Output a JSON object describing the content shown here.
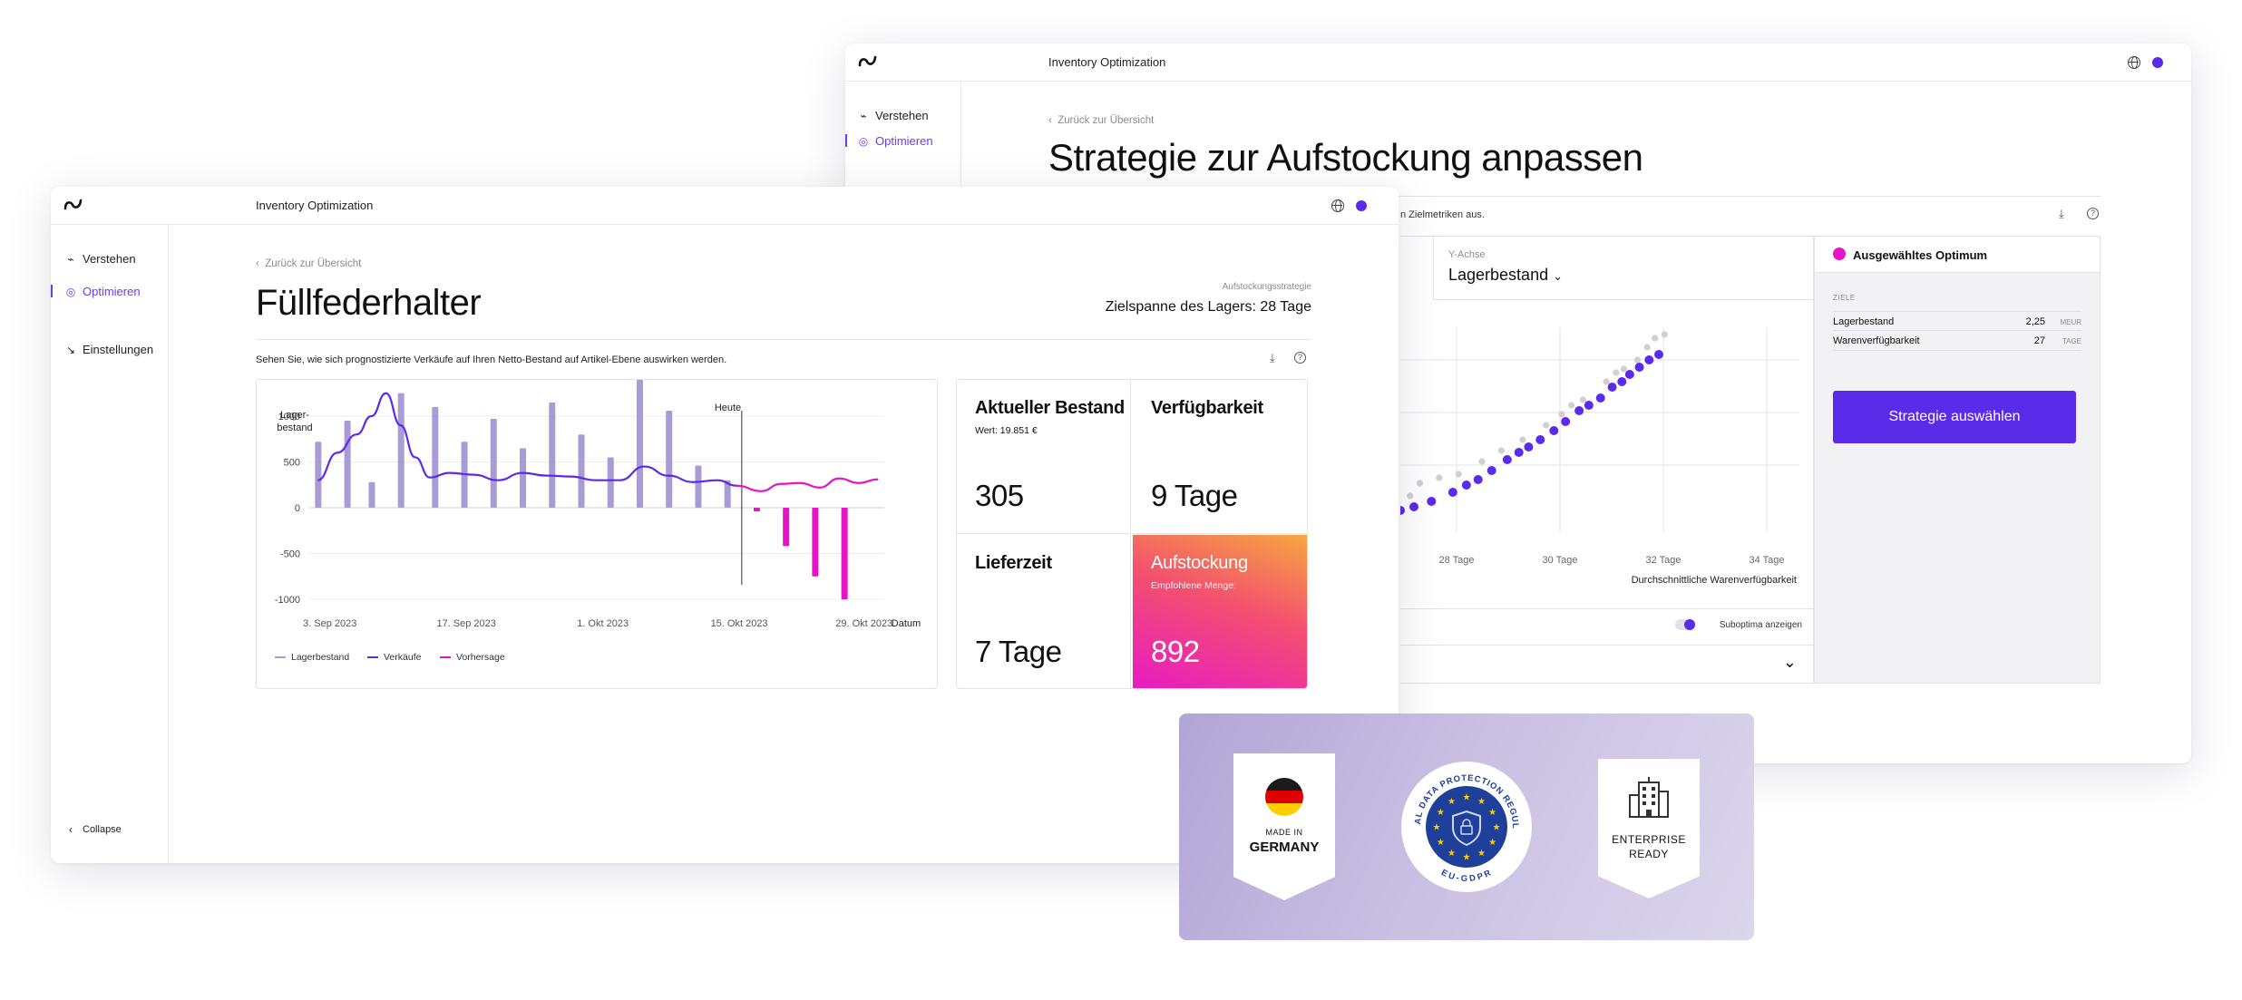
{
  "back_window": {
    "app_title": "Inventory Optimization",
    "nav": [
      {
        "label": "Verstehen",
        "icon": "pulse-icon"
      },
      {
        "label": "Optimieren",
        "icon": "target-icon",
        "active": true
      }
    ],
    "back_link": "Zurück zur Übersicht",
    "page_title": "Strategie zur Aufstockung anpassen",
    "instruction_fragment": "n Zielmetriken aus.",
    "y_axis_label": "Y-Achse",
    "y_axis_value": "Lagerbestand",
    "x_ticks": [
      "28 Tage",
      "30 Tage",
      "32 Tage",
      "34 Tage"
    ],
    "x_axis_title": "Durchschnittliche Warenverfügbarkeit",
    "toggle_label": "Suboptima anzeigen",
    "panel": {
      "title": "Ausgewähltes Optimum",
      "section": "ZIELE",
      "metrics": [
        {
          "label": "Lagerbestand",
          "value": "2,25",
          "unit": "MEUR"
        },
        {
          "label": "Warenverfügbarkeit",
          "value": "27",
          "unit": "TAGE"
        }
      ],
      "button": "Strategie auswählen"
    },
    "scatter_selected": [
      [
        0.0,
        0.02
      ],
      [
        0.07,
        0.04
      ],
      [
        0.16,
        0.07
      ],
      [
        0.27,
        0.12
      ],
      [
        0.34,
        0.16
      ],
      [
        0.4,
        0.19
      ],
      [
        0.47,
        0.24
      ],
      [
        0.55,
        0.3
      ],
      [
        0.61,
        0.34
      ],
      [
        0.66,
        0.37
      ],
      [
        0.72,
        0.41
      ],
      [
        0.79,
        0.46
      ],
      [
        0.85,
        0.51
      ],
      [
        0.92,
        0.57
      ],
      [
        0.97,
        0.6
      ],
      [
        1.03,
        0.64
      ],
      [
        1.09,
        0.7
      ],
      [
        1.14,
        0.73
      ],
      [
        1.18,
        0.77
      ],
      [
        1.23,
        0.81
      ],
      [
        1.28,
        0.85
      ],
      [
        1.33,
        0.88
      ]
    ],
    "scatter_sub": [
      [
        0.05,
        0.08
      ],
      [
        0.1,
        0.15
      ],
      [
        0.2,
        0.18
      ],
      [
        0.3,
        0.2
      ],
      [
        0.42,
        0.27
      ],
      [
        0.52,
        0.33
      ],
      [
        0.63,
        0.39
      ],
      [
        0.75,
        0.47
      ],
      [
        0.83,
        0.53
      ],
      [
        0.94,
        0.61
      ],
      [
        1.06,
        0.71
      ],
      [
        1.15,
        0.78
      ],
      [
        1.22,
        0.83
      ],
      [
        1.27,
        0.9
      ],
      [
        1.31,
        0.95
      ],
      [
        1.36,
        0.97
      ],
      [
        0.88,
        0.58
      ],
      [
        1.11,
        0.76
      ]
    ]
  },
  "front_window": {
    "app_title": "Inventory Optimization",
    "nav": [
      {
        "label": "Verstehen",
        "icon": "pulse-icon"
      },
      {
        "label": "Optimieren",
        "icon": "target-icon",
        "active": true
      },
      {
        "label": "Einstellungen",
        "icon": "settings-icon"
      }
    ],
    "collapse_label": "Collapse",
    "back_link": "Zurück zur Übersicht",
    "page_title": "Füllfederhalter",
    "strategy_caption": "Aufstockungsstrategie",
    "strategy_value": "Zielspanne des Lagers: 28 Tage",
    "chart_caption": "Sehen Sie, wie sich prognostizierte Verkäufe auf Ihren Netto-Bestand auf Artikel-Ebene auswirken werden.",
    "kpis": [
      {
        "title": "Aktueller Bestand",
        "subtitle": "Wert: 19.851 €",
        "value": "305"
      },
      {
        "title": "Verfügbarkeit",
        "subtitle": "",
        "value": "9 Tage"
      },
      {
        "title": "Lieferzeit",
        "subtitle": "",
        "value": "7 Tage"
      },
      {
        "title": "Aufstockung",
        "subtitle": "Empfohlene Menge:",
        "value": "892"
      }
    ]
  },
  "badges": [
    {
      "label_top": "MADE IN",
      "label_bottom": "GERMANY",
      "icon": "germany-flag-icon"
    },
    {
      "label_ring_top": "GENERAL DATA PROTECTION REGULATION",
      "label_ring_bottom": "EU-GDPR",
      "icon": "eu-gdpr-seal-icon"
    },
    {
      "label_top": "ENTERPRISE",
      "label_bottom": "READY",
      "icon": "building-icon"
    }
  ],
  "chart_data": {
    "type": "bar",
    "ylabel": "Lager-\nbestand",
    "xlabel": "Datum",
    "yticks": [
      1000,
      500,
      0,
      -500,
      -1000
    ],
    "ylim": [
      -1000,
      1000
    ],
    "xticks": [
      "3. Sep 2023",
      "17. Sep 2023",
      "1. Okt 2023",
      "15. Okt 2023",
      "29. Okt 2023"
    ],
    "annotation": "Heute",
    "x_index": [
      0,
      1,
      2,
      3,
      4,
      5,
      6,
      7,
      8,
      9,
      10,
      11,
      12,
      13,
      14,
      15,
      16,
      17,
      18,
      19,
      20,
      21,
      22,
      23,
      24,
      25,
      26,
      27,
      28,
      29,
      30,
      31,
      32,
      33,
      34,
      35,
      36,
      37,
      38,
      39,
      40,
      41,
      42,
      43,
      44,
      45,
      46,
      47,
      48,
      49,
      50,
      51,
      52,
      53,
      54,
      55,
      56,
      57,
      58,
      59,
      60,
      61,
      62,
      63,
      64,
      65,
      66,
      67,
      68,
      69,
      70,
      71,
      72,
      73,
      74,
      75,
      76,
      77,
      78,
      79,
      80,
      81,
      82,
      83,
      84,
      85,
      86,
      87,
      88,
      89,
      90,
      91,
      92,
      93,
      94,
      95,
      96
    ],
    "series": [
      {
        "name": "Lagerbestand",
        "kind": "bar",
        "color": "#a99bd3",
        "values": [
          {
            "i": 1,
            "v": 720
          },
          {
            "i": 7,
            "v": 950
          },
          {
            "i": 12,
            "v": 280
          },
          {
            "i": 18,
            "v": 1250
          },
          {
            "i": 25,
            "v": 1100
          },
          {
            "i": 31,
            "v": 720
          },
          {
            "i": 37,
            "v": 970
          },
          {
            "i": 43,
            "v": 650
          },
          {
            "i": 49,
            "v": 1150
          },
          {
            "i": 55,
            "v": 800
          },
          {
            "i": 61,
            "v": 550
          },
          {
            "i": 67,
            "v": 1520
          },
          {
            "i": 73,
            "v": 1060
          },
          {
            "i": 79,
            "v": 460
          },
          {
            "i": 85,
            "v": 300
          }
        ]
      },
      {
        "name": "Vorhersage",
        "kind": "bar",
        "color": "#e514c8",
        "values": [
          {
            "i": 91,
            "v": -40
          },
          {
            "i": 97,
            "v": -420
          },
          {
            "i": 103,
            "v": -750
          },
          {
            "i": 109,
            "v": -1000
          }
        ]
      },
      {
        "name": "Verkäufe",
        "kind": "line",
        "color": "#5b2bea",
        "points": [
          [
            1,
            300
          ],
          [
            5,
            600
          ],
          [
            9,
            800
          ],
          [
            12,
            1000
          ],
          [
            15,
            1250
          ],
          [
            18,
            900
          ],
          [
            21,
            550
          ],
          [
            24,
            330
          ],
          [
            28,
            380
          ],
          [
            33,
            360
          ],
          [
            38,
            300
          ],
          [
            43,
            380
          ],
          [
            48,
            350
          ],
          [
            53,
            340
          ],
          [
            58,
            300
          ],
          [
            63,
            300
          ],
          [
            68,
            450
          ],
          [
            73,
            350
          ],
          [
            78,
            280
          ],
          [
            83,
            300
          ],
          [
            87,
            240
          ]
        ]
      },
      {
        "name": "Vorhersage",
        "kind": "line",
        "color": "#e514c8",
        "points": [
          [
            87,
            240
          ],
          [
            92,
            180
          ],
          [
            96,
            260
          ],
          [
            100,
            270
          ],
          [
            104,
            220
          ],
          [
            108,
            320
          ],
          [
            112,
            270
          ],
          [
            116,
            310
          ]
        ]
      }
    ]
  }
}
